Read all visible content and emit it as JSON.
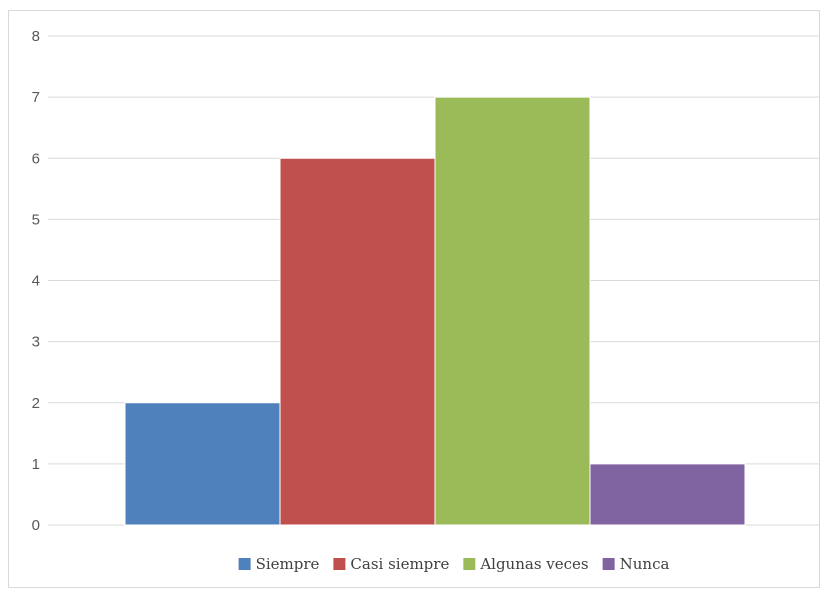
{
  "chart_data": {
    "type": "bar",
    "categories": [
      "Siempre",
      "Casi siempre",
      "Algunas veces",
      "Nunca"
    ],
    "series": [
      {
        "name": "Siempre",
        "value": 2,
        "color": "#4f81bd"
      },
      {
        "name": "Casi siempre",
        "value": 6,
        "color": "#c0504d"
      },
      {
        "name": "Algunas veces",
        "value": 7,
        "color": "#9bbb59"
      },
      {
        "name": "Nunca",
        "value": 1,
        "color": "#8064a2"
      }
    ],
    "yticks": [
      "0",
      "1",
      "2",
      "3",
      "4",
      "5",
      "6",
      "7",
      "8"
    ],
    "ylim": [
      0,
      8
    ],
    "grid": true,
    "legend_position": "bottom",
    "title": "",
    "xlabel": "",
    "ylabel": ""
  }
}
